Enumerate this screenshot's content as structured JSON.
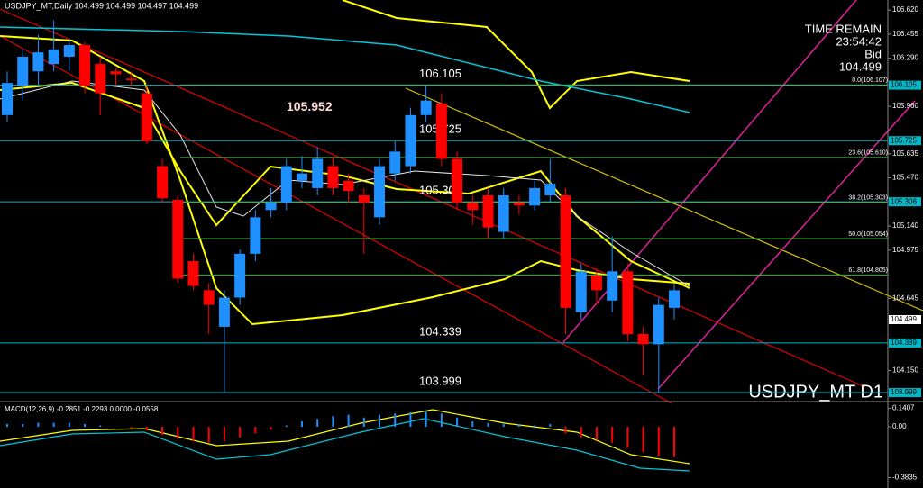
{
  "chart_data": {
    "type": "candlestick",
    "header": "USDJPY_MT,Daily  104.499 104.499 104.497 104.499",
    "symbol": "USDJPY_MT D1",
    "time_remain_label": "TIME REMAIN",
    "time_remain": "23:54:42",
    "bid_label": "Bid",
    "bid": 104.499,
    "ylim": [
      103.95,
      106.67
    ],
    "yticks": [
      {
        "value": 106.62,
        "label": "106.620"
      },
      {
        "value": 106.455,
        "label": "106.455"
      },
      {
        "value": 106.29,
        "label": "106.290"
      },
      {
        "value": 105.96,
        "label": "105.960"
      },
      {
        "value": 105.635,
        "label": "105.635"
      },
      {
        "value": 105.47,
        "label": "105.470"
      },
      {
        "value": 105.14,
        "label": "105.140"
      },
      {
        "value": 104.975,
        "label": "104.975"
      },
      {
        "value": 104.645,
        "label": "104.645"
      },
      {
        "value": 104.15,
        "label": "104.150"
      }
    ],
    "levels": [
      106.105,
      105.725,
      105.306,
      104.339,
      103.999
    ],
    "marker_label": 105.952,
    "fib_levels": [
      {
        "value": 106.107,
        "label": "0.0(106.107)"
      },
      {
        "value": 105.61,
        "label": "23.6(105.610)"
      },
      {
        "value": 105.303,
        "label": "38.2(105.303)"
      },
      {
        "value": 105.054,
        "label": "50.0(105.054)"
      },
      {
        "value": 104.805,
        "label": "61.8(104.805)"
      }
    ],
    "up_color": "#1e90ff",
    "down_color": "#ff0000",
    "open": [
      105.9,
      106.1,
      106.2,
      106.25,
      106.3,
      106.38,
      106.25,
      106.2,
      106.15,
      106.05,
      105.55,
      105.32,
      104.9,
      104.7,
      104.45,
      104.65,
      104.95,
      105.25,
      105.3,
      105.45,
      105.4,
      105.55,
      105.45,
      105.35,
      105.2,
      105.5,
      105.55,
      105.9,
      105.98,
      105.6,
      105.3,
      105.35,
      105.1,
      105.3,
      105.28,
      105.35,
      105.35,
      104.55,
      104.8,
      104.63,
      104.83,
      104.4,
      104.33,
      104.58
    ],
    "high": [
      106.2,
      106.35,
      106.45,
      106.55,
      106.42,
      106.4,
      106.3,
      106.22,
      106.2,
      106.1,
      105.6,
      105.35,
      104.95,
      104.75,
      104.7,
      104.98,
      105.25,
      105.4,
      105.6,
      105.62,
      105.68,
      105.62,
      105.5,
      105.4,
      105.6,
      105.72,
      105.95,
      106.1,
      106.05,
      105.65,
      105.35,
      105.4,
      105.4,
      105.35,
      105.45,
      105.6,
      105.4,
      104.88,
      104.85,
      105.07,
      104.88,
      104.45,
      104.65,
      104.75
    ],
    "low": [
      105.85,
      106.0,
      106.1,
      106.2,
      106.2,
      106.05,
      105.9,
      106.1,
      106.1,
      105.7,
      105.3,
      104.75,
      104.7,
      104.4,
      104.0,
      104.6,
      104.9,
      105.2,
      105.25,
      105.4,
      105.35,
      105.35,
      105.3,
      104.95,
      105.15,
      105.45,
      105.5,
      105.85,
      105.55,
      105.25,
      105.15,
      105.05,
      105.05,
      105.22,
      105.25,
      105.3,
      104.4,
      104.5,
      104.6,
      104.55,
      104.35,
      104.12,
      104.0,
      104.5
    ],
    "close": [
      106.12,
      106.3,
      106.33,
      106.35,
      106.38,
      106.1,
      106.05,
      106.18,
      106.14,
      105.72,
      105.33,
      104.78,
      104.73,
      104.6,
      104.65,
      104.95,
      105.2,
      105.3,
      105.55,
      105.5,
      105.6,
      105.4,
      105.38,
      105.3,
      105.55,
      105.65,
      105.9,
      106.0,
      105.6,
      105.3,
      105.25,
      105.13,
      105.35,
      105.28,
      105.4,
      105.43,
      104.58,
      104.83,
      104.7,
      104.83,
      104.4,
      104.33,
      104.6,
      104.7
    ],
    "macd_label": "MACD(12,26,9) -0.2851 -0.2293 0.0000 -0.0558",
    "macd_ylim": [
      -0.435,
      0.177
    ],
    "macd_yticks": [
      0.1407,
      {
        "value": 0,
        "label": "0.00"
      },
      -0.3835
    ],
    "macd_hist": [
      0.02,
      0.02,
      0.03,
      0.03,
      0.03,
      0.02,
      0.01,
      0.0,
      -0.01,
      -0.03,
      -0.06,
      -0.09,
      -0.11,
      -0.12,
      -0.11,
      -0.08,
      -0.05,
      -0.02,
      0.01,
      0.04,
      0.06,
      0.08,
      0.09,
      0.07,
      0.09,
      0.1,
      0.11,
      0.12,
      0.1,
      0.07,
      0.04,
      0.03,
      0.02,
      0.02,
      0.01,
      0.02,
      -0.05,
      -0.08,
      -0.1,
      -0.12,
      -0.16,
      -0.19,
      -0.22,
      -0.23
    ]
  }
}
